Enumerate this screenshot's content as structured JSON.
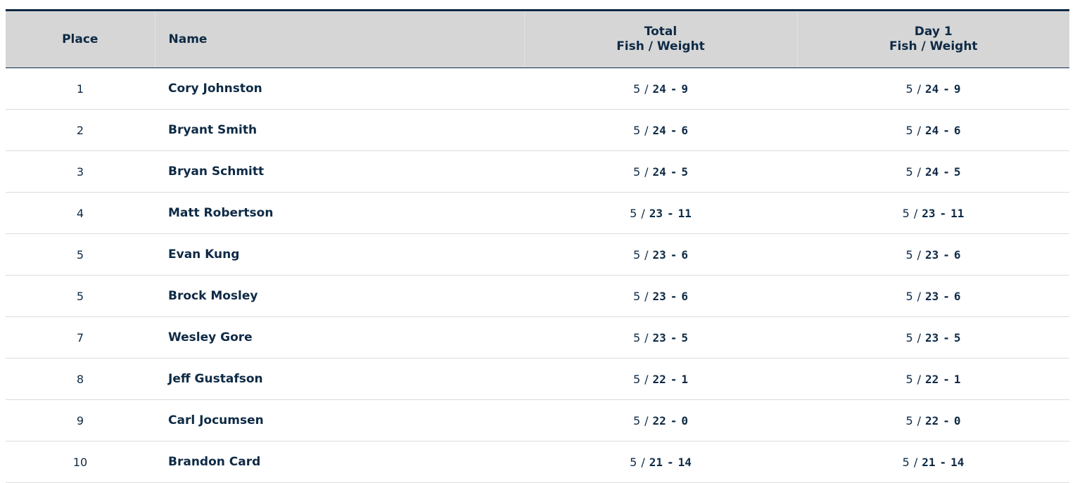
{
  "table": {
    "header": {
      "place": "Place",
      "name": "Name",
      "total": [
        "Total",
        "Fish / Weight"
      ],
      "day1": [
        "Day 1",
        "Fish / Weight"
      ]
    },
    "fish_separator": "/",
    "weight_separator": "-",
    "rows": [
      {
        "place": "1",
        "name": "Cory Johnston",
        "total": {
          "fish": 5,
          "lbs": 24,
          "oz": 9
        },
        "day1": {
          "fish": 5,
          "lbs": 24,
          "oz": 9
        }
      },
      {
        "place": "2",
        "name": "Bryant Smith",
        "total": {
          "fish": 5,
          "lbs": 24,
          "oz": 6
        },
        "day1": {
          "fish": 5,
          "lbs": 24,
          "oz": 6
        }
      },
      {
        "place": "3",
        "name": "Bryan Schmitt",
        "total": {
          "fish": 5,
          "lbs": 24,
          "oz": 5
        },
        "day1": {
          "fish": 5,
          "lbs": 24,
          "oz": 5
        }
      },
      {
        "place": "4",
        "name": "Matt Robertson",
        "total": {
          "fish": 5,
          "lbs": 23,
          "oz": 11
        },
        "day1": {
          "fish": 5,
          "lbs": 23,
          "oz": 11
        }
      },
      {
        "place": "5",
        "name": "Evan Kung",
        "total": {
          "fish": 5,
          "lbs": 23,
          "oz": 6
        },
        "day1": {
          "fish": 5,
          "lbs": 23,
          "oz": 6
        }
      },
      {
        "place": "5",
        "name": "Brock Mosley",
        "total": {
          "fish": 5,
          "lbs": 23,
          "oz": 6
        },
        "day1": {
          "fish": 5,
          "lbs": 23,
          "oz": 6
        }
      },
      {
        "place": "7",
        "name": "Wesley Gore",
        "total": {
          "fish": 5,
          "lbs": 23,
          "oz": 5
        },
        "day1": {
          "fish": 5,
          "lbs": 23,
          "oz": 5
        }
      },
      {
        "place": "8",
        "name": "Jeff Gustafson",
        "total": {
          "fish": 5,
          "lbs": 22,
          "oz": 1
        },
        "day1": {
          "fish": 5,
          "lbs": 22,
          "oz": 1
        }
      },
      {
        "place": "9",
        "name": "Carl Jocumsen",
        "total": {
          "fish": 5,
          "lbs": 22,
          "oz": 0
        },
        "day1": {
          "fish": 5,
          "lbs": 22,
          "oz": 0
        }
      },
      {
        "place": "10",
        "name": "Brandon Card",
        "total": {
          "fish": 5,
          "lbs": 21,
          "oz": 14
        },
        "day1": {
          "fish": 5,
          "lbs": 21,
          "oz": 14
        }
      }
    ]
  }
}
